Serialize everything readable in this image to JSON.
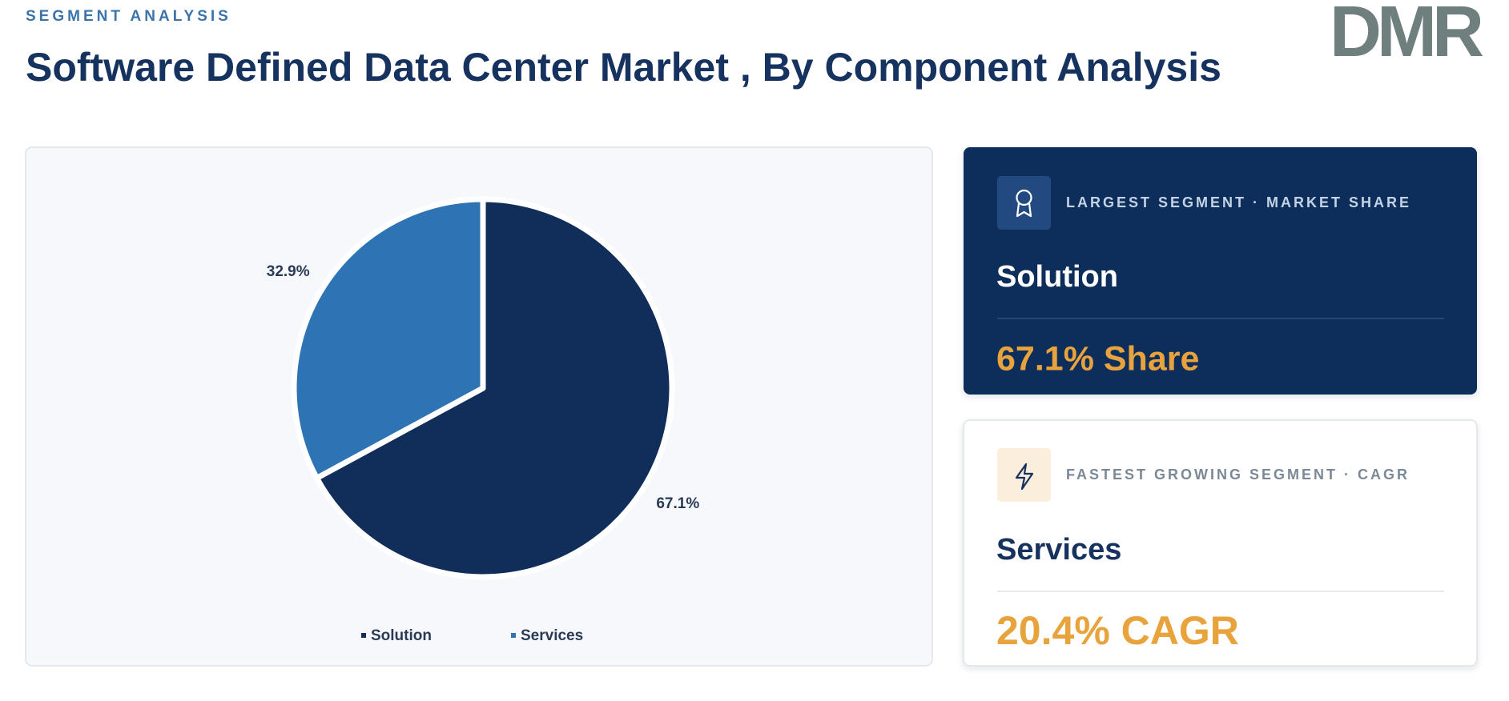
{
  "header": {
    "eyebrow": "SEGMENT ANALYSIS",
    "title": "Software Defined Data Center Market , By Component Analysis",
    "logo": "DMR"
  },
  "chart_data": {
    "type": "pie",
    "categories": [
      "Solution",
      "Services"
    ],
    "values": [
      67.1,
      32.9
    ],
    "value_labels": [
      "67.1%",
      "32.9%"
    ],
    "colors": [
      "#112d5a",
      "#2e74b5"
    ],
    "legend": "bottom"
  },
  "cards": [
    {
      "label": "LARGEST SEGMENT  ·  MARKET SHARE",
      "segment": "Solution",
      "metric": "67.1% Share"
    },
    {
      "label": "FASTEST GROWING SEGMENT  ·  CAGR",
      "segment": "Services",
      "metric": "20.4% CAGR"
    }
  ]
}
